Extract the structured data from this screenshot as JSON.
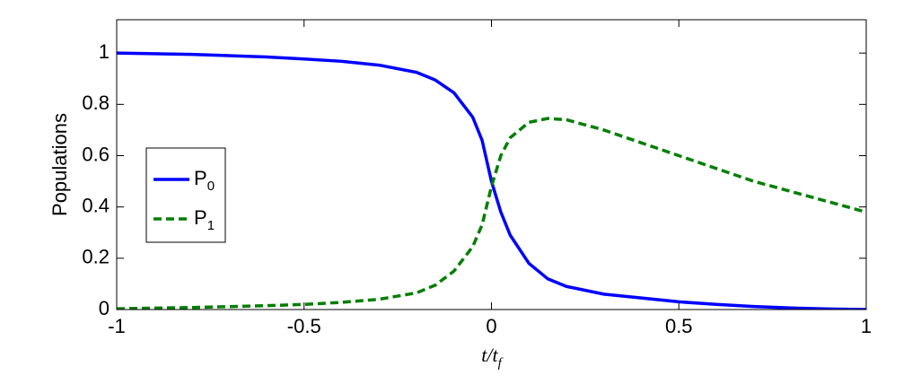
{
  "chart_data": {
    "type": "line",
    "xlabel": "t/tf",
    "ylabel": "Populations",
    "x": [
      -1,
      -0.8,
      -0.6,
      -0.5,
      -0.4,
      -0.3,
      -0.2,
      -0.15,
      -0.1,
      -0.05,
      -0.025,
      0,
      0.025,
      0.05,
      0.1,
      0.15,
      0.2,
      0.3,
      0.4,
      0.5,
      0.6,
      0.7,
      0.8,
      0.9,
      1
    ],
    "series": [
      {
        "name": "P0",
        "color": "#0000ff",
        "dash": false,
        "values": [
          1.0,
          0.995,
          0.985,
          0.977,
          0.968,
          0.953,
          0.925,
          0.895,
          0.845,
          0.75,
          0.66,
          0.5,
          0.38,
          0.29,
          0.18,
          0.12,
          0.09,
          0.06,
          0.045,
          0.03,
          0.02,
          0.012,
          0.006,
          0.002,
          0.0
        ]
      },
      {
        "name": "P1",
        "color": "#007f00",
        "dash": true,
        "values": [
          0.003,
          0.008,
          0.015,
          0.02,
          0.028,
          0.04,
          0.065,
          0.095,
          0.15,
          0.245,
          0.33,
          0.48,
          0.6,
          0.67,
          0.73,
          0.745,
          0.74,
          0.7,
          0.65,
          0.6,
          0.55,
          0.5,
          0.46,
          0.42,
          0.38
        ]
      }
    ],
    "xlim": [
      -1,
      1
    ],
    "ylim": [
      0,
      1.13
    ],
    "xticks": [
      -1,
      -0.5,
      0,
      0.5,
      1
    ],
    "yticks": [
      0,
      0.2,
      0.4,
      0.6,
      0.8,
      1
    ],
    "legend": "left"
  }
}
